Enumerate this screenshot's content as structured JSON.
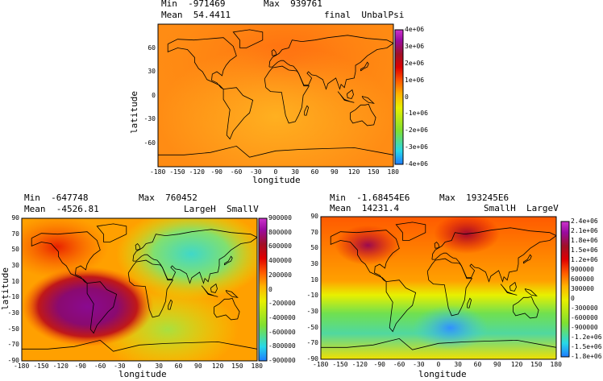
{
  "chart_data": [
    {
      "type": "heatmap",
      "stats": {
        "min": "Min  -971469",
        "max": "Max  939761",
        "mean": "Mean  54.4411"
      },
      "title": "final  UnbalPsi",
      "xlabel": "longitude",
      "ylabel": "latitude",
      "xlim": [
        -180,
        180
      ],
      "ylim": [
        -90,
        90
      ],
      "x_ticks": [
        "-180",
        "-150",
        "-120",
        "-90",
        "-60",
        "-30",
        "0",
        "30",
        "60",
        "90",
        "120",
        "150",
        "180"
      ],
      "y_ticks": [
        "60",
        "30",
        "0",
        "-30",
        "-60"
      ],
      "colorbar_ticks": [
        "4e+06",
        "3e+06",
        "2e+06",
        "1e+06",
        "0",
        "-1e+06",
        "-2e+06",
        "-3e+06",
        "-4e+06"
      ],
      "colorbar_range": [
        -4000000,
        4000000
      ]
    },
    {
      "type": "heatmap",
      "stats": {
        "min": "Min  -647748",
        "max": "Max  760452",
        "mean": "Mean  -4526.81"
      },
      "title": "LargeH  SmallV",
      "xlabel": "longitude",
      "ylabel": "latitude",
      "xlim": [
        -180,
        180
      ],
      "ylim": [
        -90,
        90
      ],
      "x_ticks": [
        "-180",
        "-150",
        "-120",
        "-90",
        "-60",
        "-30",
        "0",
        "30",
        "60",
        "90",
        "120",
        "150",
        "180"
      ],
      "y_ticks": [
        "90",
        "70",
        "50",
        "30",
        "10",
        "-10",
        "-30",
        "-50",
        "-70",
        "-90"
      ],
      "colorbar_ticks": [
        "900000",
        "800000",
        "600000",
        "400000",
        "200000",
        "0",
        "-200000",
        "-400000",
        "-600000",
        "-800000",
        "-900000"
      ],
      "colorbar_range": [
        -900000,
        900000
      ]
    },
    {
      "type": "heatmap",
      "stats": {
        "min": "Min  -1.68454E6",
        "max": "Max  193245E6",
        "mean": "Mean  14231.4"
      },
      "title": "SmallH  LargeV",
      "xlabel": "longitude",
      "ylabel": "latitude",
      "xlim": [
        -180,
        180
      ],
      "ylim": [
        -90,
        90
      ],
      "x_ticks": [
        "-180",
        "-150",
        "-120",
        "-90",
        "-60",
        "-30",
        "0",
        "30",
        "60",
        "90",
        "120",
        "150",
        "180"
      ],
      "y_ticks": [
        "90",
        "70",
        "50",
        "30",
        "10",
        "-10",
        "-30",
        "-50",
        "-70",
        "-90"
      ],
      "colorbar_ticks": [
        "2.4e+06",
        "2.1e+06",
        "1.8e+06",
        "1.5e+06",
        "1.2e+06",
        "900000",
        "600000",
        "300000",
        "0",
        "-300000",
        "-600000",
        "-900000",
        "-1.2e+06",
        "-1.5e+06",
        "-1.8e+06"
      ],
      "colorbar_range": [
        -1800000,
        2400000
      ]
    }
  ],
  "colors": {
    "colorbar_stops": [
      "#1e7dff",
      "#27d8e8",
      "#7fe030",
      "#e8f000",
      "#ffb400",
      "#ff5a00",
      "#e00000",
      "#a01028",
      "#9a0aa0",
      "#cc33cc"
    ]
  }
}
